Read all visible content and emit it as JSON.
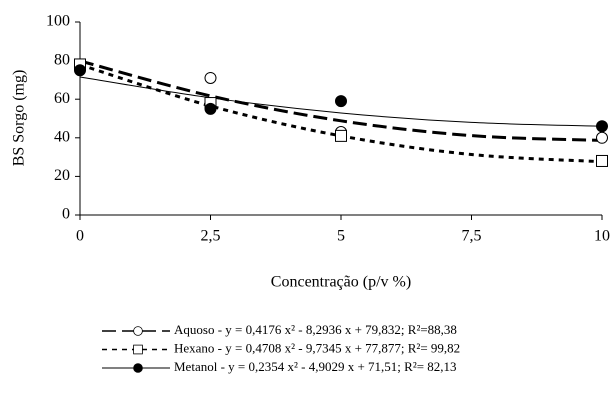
{
  "chart_data": {
    "type": "scatter",
    "xlabel": "Concentração (p/v %)",
    "ylabel": "BS Sorgo (mg)",
    "xlim": [
      0,
      10
    ],
    "ylim": [
      0,
      100
    ],
    "xticks": [
      0,
      {
        "value": 2.5,
        "label": "2,5"
      },
      5,
      {
        "value": 7.5,
        "label": "7,5"
      },
      10
    ],
    "yticks": [
      0,
      20,
      40,
      60,
      80,
      100
    ],
    "x": [
      0,
      2.5,
      5,
      10
    ],
    "fit_x": [
      0,
      2.5,
      5,
      7.5,
      10
    ],
    "series": [
      {
        "name": "Aquoso - y = 0,4176 x² - 8,2936 x + 79,832; R²=88,38",
        "marker": "open-circle",
        "line": "long-dash",
        "color": "#000000",
        "values": [
          78,
          71,
          43,
          40
        ],
        "fit_values": [
          79.83,
          61.71,
          48.8,
          41.12,
          38.65
        ]
      },
      {
        "name": "Hexano - y = 0,4708 x² - 9,7345 x + 77,877; R²= 99,82",
        "marker": "open-square",
        "line": "short-dash",
        "color": "#000000",
        "values": [
          78,
          58,
          41,
          28
        ],
        "fit_values": [
          77.88,
          56.48,
          40.98,
          31.35,
          27.61
        ]
      },
      {
        "name": "Metanol - y =  0,2354 x² - 4,9029 x + 71,51; R²= 82,13",
        "marker": "filled-circle",
        "line": "solid",
        "color": "#000000",
        "values": [
          75,
          55,
          59,
          46
        ],
        "fit_values": [
          71.51,
          60.72,
          52.88,
          47.98,
          46.02
        ]
      }
    ]
  }
}
